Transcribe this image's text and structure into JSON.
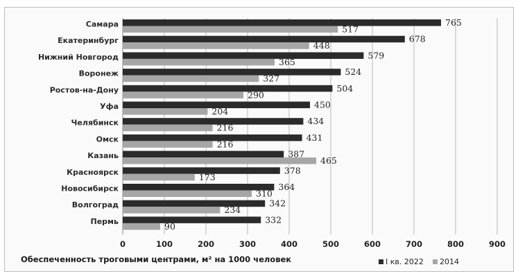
{
  "chart_data": {
    "type": "bar",
    "orientation": "horizontal",
    "categories": [
      "Самара",
      "Екатеринбург",
      "Нижний Новгород",
      "Воронеж",
      "Ростов-на-Дону",
      "Уфа",
      "Челябинск",
      "Омск",
      "Казань",
      "Красноярск",
      "Новосибирск",
      "Волгоград",
      "Пермь"
    ],
    "series": [
      {
        "name": "I кв. 2022",
        "color": "#2b2b2b",
        "values": [
          765,
          678,
          579,
          524,
          504,
          450,
          434,
          431,
          387,
          378,
          364,
          342,
          332
        ]
      },
      {
        "name": "2014",
        "color": "#a6a6a6",
        "values": [
          517,
          448,
          365,
          327,
          290,
          204,
          216,
          216,
          465,
          173,
          310,
          234,
          90
        ]
      }
    ],
    "xlim": [
      0,
      900
    ],
    "xticks": [
      0,
      100,
      200,
      300,
      400,
      500,
      600,
      700,
      800,
      900
    ],
    "xlabel": "Обеспеченность троговыми центрами, м² на 1000 человек",
    "grid": true,
    "legend": "bottom-right"
  }
}
